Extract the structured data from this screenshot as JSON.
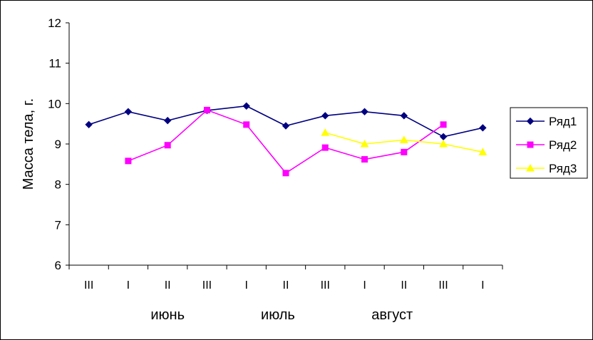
{
  "chart_data": {
    "type": "line",
    "ylabel": "Масса тела, г.",
    "ylim": [
      6,
      12
    ],
    "yticks": [
      "6",
      "7",
      "8",
      "9",
      "10",
      "11",
      "12"
    ],
    "categories": [
      "III",
      "I",
      "II",
      "III",
      "I",
      "II",
      "III",
      "I",
      "II",
      "III",
      "I"
    ],
    "month_labels": [
      {
        "label": "июнь",
        "center_index": 2
      },
      {
        "label": "июль",
        "center_index": 4.8
      },
      {
        "label": "август",
        "center_index": 7.7
      }
    ],
    "legend_position": "right",
    "grid": false,
    "series": [
      {
        "name": "Ряд1",
        "color": "#000080",
        "marker": "diamond",
        "values": [
          9.48,
          9.8,
          9.58,
          9.83,
          9.94,
          9.45,
          9.7,
          9.8,
          9.7,
          9.18,
          9.4
        ]
      },
      {
        "name": "Ряд2",
        "color": "#FF00FF",
        "marker": "square",
        "values": [
          null,
          8.58,
          8.97,
          9.84,
          9.48,
          8.28,
          8.91,
          8.62,
          8.8,
          9.48,
          null
        ]
      },
      {
        "name": "Ряд3",
        "color": "#FFFF00",
        "marker": "triangle",
        "values": [
          null,
          null,
          null,
          null,
          null,
          null,
          9.28,
          9.0,
          9.1,
          9.0,
          8.8
        ]
      }
    ]
  }
}
